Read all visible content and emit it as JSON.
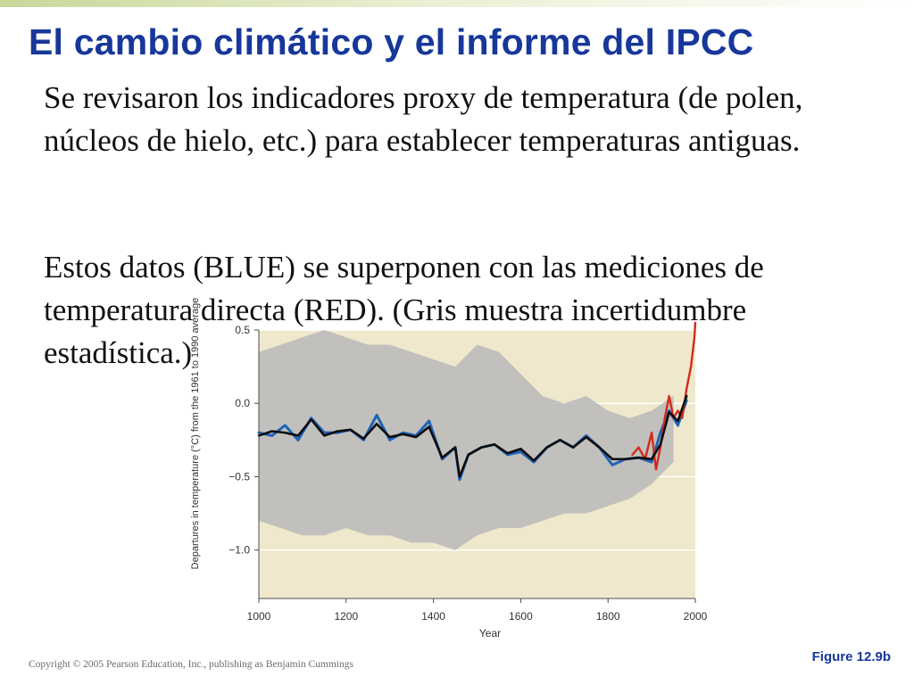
{
  "slide": {
    "title": "El cambio climático y el informe del IPCC",
    "paragraph_1": "Se revisaron los indicadores proxy de temperatura (de polen, núcleos de hielo, etc.) para establecer temperaturas antiguas.",
    "paragraph_2": "Estos datos (BLUE) se superponen con las mediciones de temperatura directa (RED). (Gris muestra incertidumbre estadística.)",
    "copyright": "Copyright © 2005 Pearson Education, Inc., publishing as Benjamin Cummings",
    "figure_label": "Figure 12.9b"
  },
  "colors": {
    "title": "#17379a",
    "plot_background": "#efe8cc",
    "uncertainty_band": "#b9b9b9",
    "proxy_series": "#1f63b8",
    "instrumental_series": "#d42a1d",
    "smoothed_series": "#0d0d0d"
  },
  "chart_data": {
    "type": "line",
    "xlabel": "Year",
    "ylabel": "Departures in temperature (°C) from the 1961 to 1990 average",
    "xlim": [
      1000,
      2000
    ],
    "ylim": [
      -1.33,
      0.5
    ],
    "xticks": [
      "1000",
      "1200",
      "1400",
      "1600",
      "1800",
      "2000"
    ],
    "yticks": [
      "0.5",
      "0.0",
      "−0.5",
      "−1.0"
    ],
    "grid": true,
    "series": [
      {
        "role": "uncertainty_band",
        "x": [
          1000,
          1050,
          1100,
          1150,
          1200,
          1250,
          1300,
          1350,
          1400,
          1450,
          1500,
          1550,
          1600,
          1650,
          1700,
          1750,
          1800,
          1850,
          1900,
          1950
        ],
        "upper": [
          0.35,
          0.4,
          0.45,
          0.5,
          0.45,
          0.4,
          0.4,
          0.35,
          0.3,
          0.25,
          0.4,
          0.35,
          0.2,
          0.05,
          0.0,
          0.05,
          -0.05,
          -0.1,
          -0.05,
          0.05
        ],
        "lower": [
          -0.8,
          -0.85,
          -0.9,
          -0.9,
          -0.85,
          -0.9,
          -0.9,
          -0.95,
          -0.95,
          -1.0,
          -0.9,
          -0.85,
          -0.85,
          -0.8,
          -0.75,
          -0.75,
          -0.7,
          -0.65,
          -0.55,
          -0.4
        ]
      },
      {
        "role": "proxy",
        "x": [
          1000,
          1030,
          1060,
          1090,
          1120,
          1150,
          1180,
          1210,
          1240,
          1270,
          1300,
          1330,
          1360,
          1390,
          1420,
          1450,
          1460,
          1480,
          1510,
          1540,
          1570,
          1600,
          1630,
          1660,
          1690,
          1720,
          1750,
          1780,
          1810,
          1840,
          1870,
          1900,
          1920,
          1940,
          1960,
          1980
        ],
        "y": [
          -0.2,
          -0.22,
          -0.15,
          -0.25,
          -0.1,
          -0.2,
          -0.2,
          -0.18,
          -0.25,
          -0.08,
          -0.25,
          -0.2,
          -0.22,
          -0.12,
          -0.38,
          -0.3,
          -0.52,
          -0.35,
          -0.3,
          -0.28,
          -0.35,
          -0.33,
          -0.4,
          -0.3,
          -0.25,
          -0.3,
          -0.22,
          -0.3,
          -0.42,
          -0.38,
          -0.37,
          -0.4,
          -0.2,
          -0.05,
          -0.15,
          0.02
        ]
      },
      {
        "role": "smoothed",
        "x": [
          1000,
          1030,
          1060,
          1090,
          1120,
          1150,
          1180,
          1210,
          1240,
          1270,
          1300,
          1330,
          1360,
          1390,
          1420,
          1450,
          1460,
          1480,
          1510,
          1540,
          1570,
          1600,
          1630,
          1660,
          1690,
          1720,
          1750,
          1780,
          1810,
          1840,
          1870,
          1900,
          1920,
          1940,
          1960,
          1980
        ],
        "y": [
          -0.22,
          -0.19,
          -0.2,
          -0.22,
          -0.11,
          -0.22,
          -0.19,
          -0.18,
          -0.24,
          -0.14,
          -0.23,
          -0.21,
          -0.23,
          -0.16,
          -0.37,
          -0.3,
          -0.5,
          -0.35,
          -0.3,
          -0.28,
          -0.34,
          -0.31,
          -0.39,
          -0.3,
          -0.25,
          -0.3,
          -0.23,
          -0.3,
          -0.38,
          -0.38,
          -0.37,
          -0.38,
          -0.28,
          -0.06,
          -0.12,
          0.05
        ]
      },
      {
        "role": "instrumental",
        "x": [
          1856,
          1870,
          1885,
          1900,
          1910,
          1920,
          1930,
          1940,
          1950,
          1960,
          1970,
          1980,
          1990,
          1998,
          2000
        ],
        "y": [
          -0.35,
          -0.3,
          -0.38,
          -0.2,
          -0.45,
          -0.3,
          -0.1,
          0.05,
          -0.1,
          -0.05,
          -0.1,
          0.1,
          0.25,
          0.45,
          0.55
        ]
      }
    ]
  }
}
